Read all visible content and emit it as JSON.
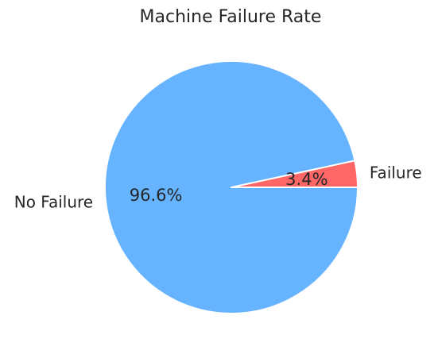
{
  "chart_data": {
    "type": "pie",
    "title": "Machine Failure Rate",
    "start_angle_deg": 0,
    "direction": "counterclockwise",
    "slices": [
      {
        "label": "Failure",
        "value": 3.4,
        "pct_label": "3.4%",
        "color": "#ff6666"
      },
      {
        "label": "No Failure",
        "value": 96.6,
        "pct_label": "96.6%",
        "color": "#66b3ff"
      }
    ],
    "edge_color": "#ffffff",
    "legend": "none"
  }
}
